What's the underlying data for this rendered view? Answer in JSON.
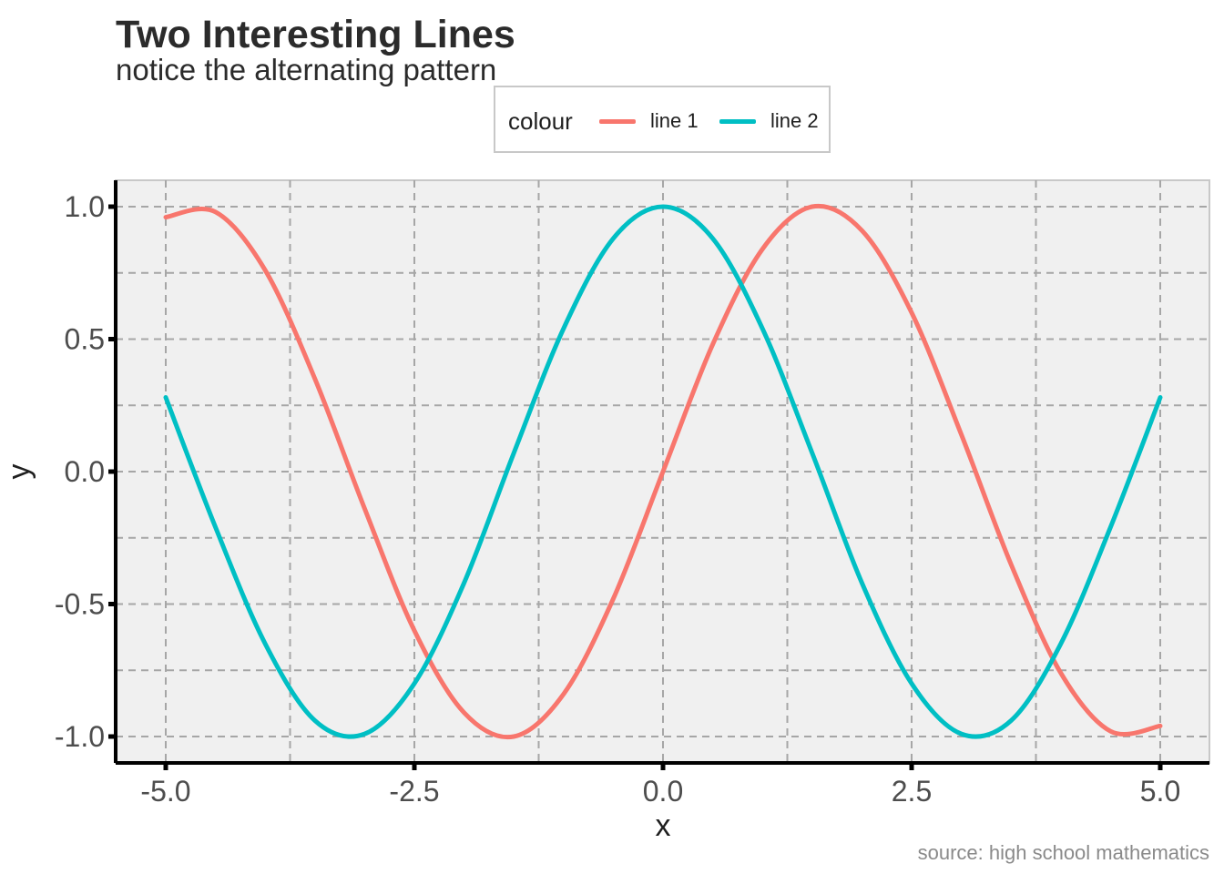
{
  "chart_data": {
    "type": "line",
    "title": "Two Interesting Lines",
    "subtitle": "notice the alternating pattern",
    "caption": "source: high school mathematics",
    "xlabel": "x",
    "ylabel": "y",
    "xlim": [
      -5.0,
      5.0
    ],
    "ylim": [
      -1.0,
      1.0
    ],
    "x_ticks": [
      "-5.0",
      "-2.5",
      "0.0",
      "2.5",
      "5.0"
    ],
    "y_ticks": [
      "1.0",
      "0.5",
      "0.0",
      "-0.5",
      "-1.0"
    ],
    "grid": true,
    "grid_style": "dashed",
    "legend": {
      "title": "colour",
      "position": "top"
    },
    "x": [
      -5.0,
      -4.5,
      -4.0,
      -3.5,
      -3.0,
      -2.5,
      -2.0,
      -1.5,
      -1.0,
      -0.5,
      0.0,
      0.5,
      1.0,
      1.5,
      2.0,
      2.5,
      3.0,
      3.5,
      4.0,
      4.5,
      5.0
    ],
    "series": [
      {
        "name": "line 1",
        "color": "#F8766D",
        "values": [
          0.96,
          0.98,
          0.76,
          0.35,
          -0.14,
          -0.6,
          -0.91,
          -1.0,
          -0.84,
          -0.48,
          0.0,
          0.48,
          0.84,
          1.0,
          0.91,
          0.6,
          0.14,
          -0.35,
          -0.76,
          -0.98,
          -0.96
        ]
      },
      {
        "name": "line 2",
        "color": "#00BFC4",
        "values": [
          0.28,
          -0.21,
          -0.65,
          -0.94,
          -0.99,
          -0.8,
          -0.42,
          0.07,
          0.54,
          0.88,
          1.0,
          0.88,
          0.54,
          0.07,
          -0.42,
          -0.8,
          -0.99,
          -0.94,
          -0.65,
          -0.21,
          0.28
        ]
      }
    ]
  }
}
